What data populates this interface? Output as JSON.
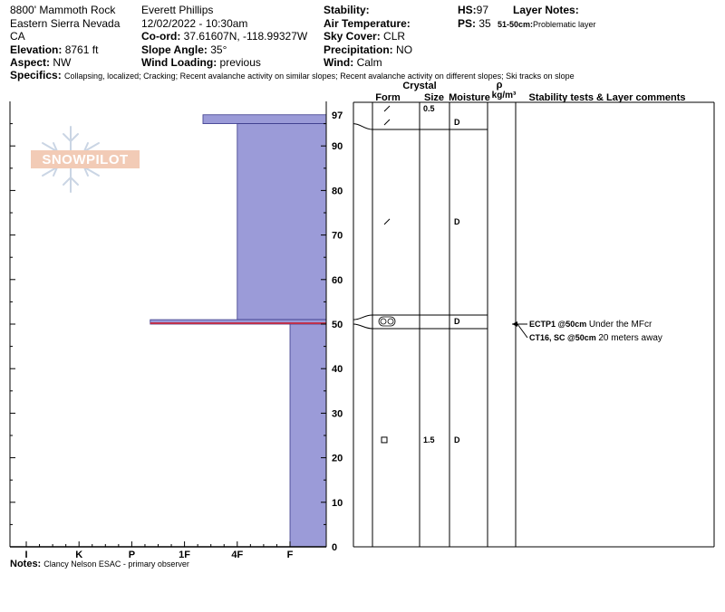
{
  "header": {
    "location": "8800' Mammoth Rock",
    "region": "Eastern Sierra Nevada",
    "state": "CA",
    "elevation_label": "Elevation:",
    "elevation": "8761 ft",
    "aspect_label": "Aspect:",
    "aspect": "NW",
    "observer": "Everett Phillips",
    "datetime": "12/02/2022 - 10:30am",
    "coord_label": "Co-ord:",
    "coord": "37.61607N, -118.99327W",
    "slope_label": "Slope Angle:",
    "slope": "35°",
    "wind_loading_label": "Wind Loading:",
    "wind_loading": "previous",
    "stability_label": "Stability:",
    "stability": "",
    "air_temp_label": "Air Temperature:",
    "air_temp": "",
    "sky_label": "Sky Cover:",
    "sky": "CLR",
    "precip_label": "Precipitation:",
    "precip": "NO",
    "wind_label": "Wind:",
    "wind": "Calm",
    "hs_label": "HS:",
    "hs": "97",
    "ps_label": "PS:",
    "ps": "35",
    "layer_notes_label": "Layer Notes:",
    "layer_note_range": "51-50cm:",
    "layer_note_text": "Problematic layer",
    "specifics_label": "Specifics:",
    "specifics": "Collapsing, localized; Cracking; Recent avalanche activity on similar slopes; Recent avalanche activity on different slopes; Ski tracks on slope",
    "notes_label": "Notes:",
    "notes": "Clancy Nelson ESAC - primary observer"
  },
  "watermark": "SNOWPILOT",
  "columns": {
    "crystal": "Crystal",
    "form": "Form",
    "size": "Size",
    "moisture": "Moisture",
    "rho": "ρ",
    "density_unit": "kg/m³",
    "comments": "Stability tests & Layer comments"
  },
  "chart_data": {
    "type": "bar",
    "title": "",
    "ylabel": "",
    "ylim": [
      0,
      100
    ],
    "y_ticks": [
      0,
      10,
      20,
      30,
      40,
      50,
      60,
      70,
      80,
      90,
      97
    ],
    "hardness_scale": [
      "I",
      "K",
      "P",
      "1F",
      "4F",
      "F"
    ],
    "hardness_scale_values": [
      1,
      2,
      3,
      4,
      5,
      6
    ],
    "layers": [
      {
        "top": 97,
        "bottom": 95,
        "hardness": "1F",
        "hardness_value": 4.35
      },
      {
        "top": 95,
        "bottom": 51,
        "hardness": "4F",
        "hardness_value": 5.0
      },
      {
        "top": 51,
        "bottom": 50,
        "hardness": "P",
        "hardness_value": 3.35
      },
      {
        "top": 50,
        "bottom": 0,
        "hardness": "F",
        "hardness_value": 6.0
      }
    ],
    "problem_layer": {
      "top": 50.4,
      "bottom": 50,
      "color": "#c0304a"
    },
    "bar_color": "#9b9bd8",
    "bar_stroke": "#3a3a8a",
    "layer_rows": [
      {
        "top": 97,
        "bottom": 95,
        "form_icon": "slash-icon",
        "size": "0.5",
        "moisture": ""
      },
      {
        "top": 95,
        "bottom": 51,
        "form_icon": "slash-icon",
        "size": "",
        "moisture": "D"
      },
      {
        "top": 51,
        "bottom": 50,
        "form_icon": "double-circle-icon",
        "size": "",
        "moisture": "D"
      },
      {
        "top": 50,
        "bottom": 0,
        "form_icon": "square-icon",
        "size": "1.5",
        "moisture": "D"
      }
    ],
    "extra_form_marks": [
      {
        "depth": 73,
        "form_icon": "slash-icon",
        "moisture": "D"
      }
    ],
    "tests": [
      {
        "depth": 50,
        "label": "ECTP1 @50cm",
        "comment": "Under the MFcr"
      },
      {
        "depth": 50,
        "label": "CT16, SC @50cm",
        "comment": "20 meters away"
      }
    ]
  }
}
